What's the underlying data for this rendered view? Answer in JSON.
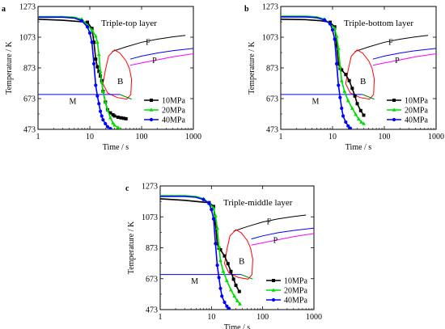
{
  "figure": {
    "colors": {
      "p10": "#000000",
      "p20": "#00dd00",
      "p40": "#0000ff",
      "F": "#000000",
      "P": "#0000ff",
      "Pm": "#ff00ff",
      "B": "#ff0000",
      "M": "#0000ff",
      "Mtail": "#008000"
    }
  },
  "chart_data": [
    {
      "type": "line",
      "panel_letter": "a",
      "title": "Triple-top layer",
      "xlabel": "Time / s",
      "ylabel": "Temperature / K",
      "xscale": "log",
      "xlim": [
        1,
        1000
      ],
      "ylim": [
        473,
        1273
      ],
      "xticks": [
        "1",
        "10",
        "100",
        "1000"
      ],
      "yticks": [
        "473",
        "673",
        "873",
        "1073",
        "1273"
      ],
      "legend": "bottom-right",
      "region_labels": {
        "F": "F",
        "P": "P",
        "B": "B",
        "M": "M"
      },
      "series": [
        {
          "name": "10MPa",
          "color": "#000000",
          "marker": "square",
          "x": [
            1,
            3,
            6,
            9,
            11,
            12,
            13,
            14,
            15,
            16,
            17,
            18,
            20,
            22,
            25,
            28,
            30,
            35,
            40,
            45,
            50
          ],
          "y": [
            1190,
            1183,
            1175,
            1170,
            1130,
            1040,
            930,
            880,
            850,
            820,
            790,
            720,
            650,
            600,
            580,
            568,
            560,
            552,
            548,
            545,
            542
          ]
        },
        {
          "name": "20MPa",
          "color": "#00dd00",
          "marker": "triangle",
          "x": [
            1,
            3,
            5,
            7,
            9,
            11,
            13,
            14,
            15,
            16,
            17,
            18,
            20,
            22,
            25,
            28,
            30,
            35,
            38
          ],
          "y": [
            1207,
            1207,
            1203,
            1190,
            1150,
            1120,
            1080,
            1040,
            960,
            850,
            780,
            720,
            650,
            600,
            548,
            515,
            500,
            485,
            475
          ]
        },
        {
          "name": "40MPa",
          "color": "#0000ff",
          "marker": "circle",
          "x": [
            1,
            3,
            5,
            7,
            9,
            10,
            11,
            12,
            13,
            14,
            15,
            16,
            17,
            18,
            20,
            22,
            25
          ],
          "y": [
            1203,
            1203,
            1198,
            1180,
            1140,
            1100,
            1040,
            900,
            760,
            690,
            640,
            590,
            560,
            535,
            510,
            490,
            478
          ]
        }
      ],
      "regions": {
        "F": {
          "x": [
            27,
            50,
            100,
            200,
            400,
            700
          ],
          "y": [
            980,
            1010,
            1040,
            1060,
            1075,
            1085
          ]
        },
        "P": {
          "x": [
            60,
            100,
            200,
            400,
            1000
          ],
          "y": [
            930,
            950,
            970,
            985,
            1000
          ]
        },
        "Pm": {
          "x": [
            60,
            100,
            200,
            400,
            1000
          ],
          "y": [
            890,
            905,
            925,
            945,
            965
          ]
        },
        "B": {
          "x": [
            20,
            18,
            22,
            34,
            52,
            62,
            64,
            58,
            50,
            38,
            30,
            23,
            20
          ],
          "y": [
            860,
            770,
            710,
            680,
            670,
            700,
            800,
            870,
            920,
            970,
            990,
            950,
            860
          ]
        },
        "M": {
          "x": [
            1,
            38
          ],
          "y": [
            700,
            700
          ]
        },
        "Mtail": {
          "x": [
            38,
            64
          ],
          "y": [
            700,
            670
          ]
        }
      }
    },
    {
      "type": "line",
      "panel_letter": "b",
      "title": "Triple-bottom layer",
      "xlabel": "Time / s",
      "ylabel": "Temperature / K",
      "xscale": "log",
      "xlim": [
        1,
        1000
      ],
      "ylim": [
        473,
        1273
      ],
      "xticks": [
        "1",
        "10",
        "100",
        "1000"
      ],
      "yticks": [
        "473",
        "673",
        "873",
        "1073",
        "1273"
      ],
      "legend": "bottom-right",
      "region_labels": {
        "F": "F",
        "P": "P",
        "B": "B",
        "M": "M"
      },
      "series": [
        {
          "name": "10MPa",
          "color": "#000000",
          "marker": "square",
          "x": [
            1,
            3,
            6,
            9,
            11,
            12,
            13,
            14,
            15,
            18,
            21,
            24,
            27,
            30,
            35,
            40
          ],
          "y": [
            1190,
            1187,
            1180,
            1170,
            1140,
            1020,
            900,
            870,
            860,
            830,
            790,
            740,
            690,
            640,
            595,
            565
          ]
        },
        {
          "name": "20MPa",
          "color": "#00dd00",
          "marker": "triangle",
          "x": [
            1,
            3,
            5,
            7,
            9,
            11,
            12,
            13,
            14,
            15,
            17,
            20,
            24,
            28,
            32,
            36,
            40
          ],
          "y": [
            1210,
            1210,
            1205,
            1190,
            1160,
            1130,
            1080,
            1000,
            880,
            790,
            720,
            660,
            610,
            570,
            540,
            520,
            510
          ]
        },
        {
          "name": "40MPa",
          "color": "#0000ff",
          "marker": "circle",
          "x": [
            1,
            3,
            5,
            7,
            9,
            10,
            11,
            12,
            13,
            14,
            15,
            16,
            18,
            20,
            22
          ],
          "y": [
            1205,
            1205,
            1200,
            1185,
            1160,
            1120,
            1060,
            900,
            760,
            680,
            610,
            560,
            520,
            495,
            480
          ]
        }
      ],
      "regions": {
        "F": {
          "x": [
            27,
            50,
            100,
            200,
            400,
            700
          ],
          "y": [
            980,
            1010,
            1040,
            1060,
            1075,
            1085
          ]
        },
        "P": {
          "x": [
            60,
            100,
            200,
            400,
            1000
          ],
          "y": [
            930,
            950,
            970,
            985,
            1000
          ]
        },
        "Pm": {
          "x": [
            60,
            100,
            200,
            400,
            1000
          ],
          "y": [
            890,
            905,
            925,
            945,
            965
          ]
        },
        "B": {
          "x": [
            20,
            18,
            22,
            34,
            52,
            62,
            64,
            58,
            50,
            38,
            30,
            23,
            20
          ],
          "y": [
            860,
            770,
            710,
            680,
            670,
            700,
            800,
            870,
            920,
            970,
            990,
            950,
            860
          ]
        },
        "M": {
          "x": [
            1,
            38
          ],
          "y": [
            700,
            700
          ]
        },
        "Mtail": {
          "x": [
            38,
            64
          ],
          "y": [
            700,
            670
          ]
        }
      }
    },
    {
      "type": "line",
      "panel_letter": "c",
      "title": "Triple-middle layer",
      "xlabel": "Time / s",
      "ylabel": "Temperature / K",
      "xscale": "log",
      "xlim": [
        1,
        1000
      ],
      "ylim": [
        473,
        1273
      ],
      "xticks": [
        "1",
        "10",
        "100",
        "1000"
      ],
      "yticks": [
        "473",
        "673",
        "873",
        "1073",
        "1273"
      ],
      "legend": "bottom-right",
      "region_labels": {
        "F": "F",
        "P": "P",
        "B": "B",
        "M": "M"
      },
      "series": [
        {
          "name": "10MPa",
          "color": "#000000",
          "marker": "square",
          "x": [
            1,
            3,
            6,
            9,
            11,
            12,
            13,
            14,
            15,
            18,
            21,
            24,
            27,
            30,
            35
          ],
          "y": [
            1190,
            1180,
            1170,
            1165,
            1140,
            1030,
            900,
            870,
            860,
            820,
            770,
            720,
            670,
            630,
            590
          ]
        },
        {
          "name": "20MPa",
          "color": "#00dd00",
          "marker": "triangle",
          "x": [
            1,
            3,
            5,
            7,
            9,
            11,
            12,
            13,
            14,
            15,
            17,
            20,
            24,
            28,
            32,
            36
          ],
          "y": [
            1210,
            1210,
            1205,
            1190,
            1160,
            1130,
            1080,
            1000,
            880,
            790,
            720,
            660,
            600,
            560,
            530,
            510
          ]
        },
        {
          "name": "40MPa",
          "color": "#0000ff",
          "marker": "circle",
          "x": [
            1,
            3,
            5,
            7,
            9,
            10,
            11,
            12,
            13,
            14,
            15,
            16,
            18,
            20,
            22
          ],
          "y": [
            1205,
            1205,
            1200,
            1185,
            1160,
            1120,
            1060,
            900,
            760,
            680,
            610,
            560,
            520,
            495,
            480
          ]
        }
      ],
      "regions": {
        "F": {
          "x": [
            27,
            50,
            100,
            200,
            400,
            700
          ],
          "y": [
            980,
            1010,
            1040,
            1060,
            1075,
            1085
          ]
        },
        "P": {
          "x": [
            60,
            100,
            200,
            400,
            1000
          ],
          "y": [
            930,
            950,
            970,
            985,
            1000
          ]
        },
        "Pm": {
          "x": [
            60,
            100,
            200,
            400,
            1000
          ],
          "y": [
            890,
            905,
            925,
            945,
            965
          ]
        },
        "B": {
          "x": [
            20,
            18,
            22,
            34,
            52,
            62,
            64,
            58,
            50,
            38,
            30,
            23,
            20
          ],
          "y": [
            860,
            770,
            710,
            680,
            670,
            700,
            800,
            870,
            920,
            970,
            990,
            950,
            860
          ]
        },
        "M": {
          "x": [
            1,
            38
          ],
          "y": [
            700,
            700
          ]
        },
        "Mtail": {
          "x": [
            38,
            64
          ],
          "y": [
            700,
            670
          ]
        }
      }
    }
  ]
}
